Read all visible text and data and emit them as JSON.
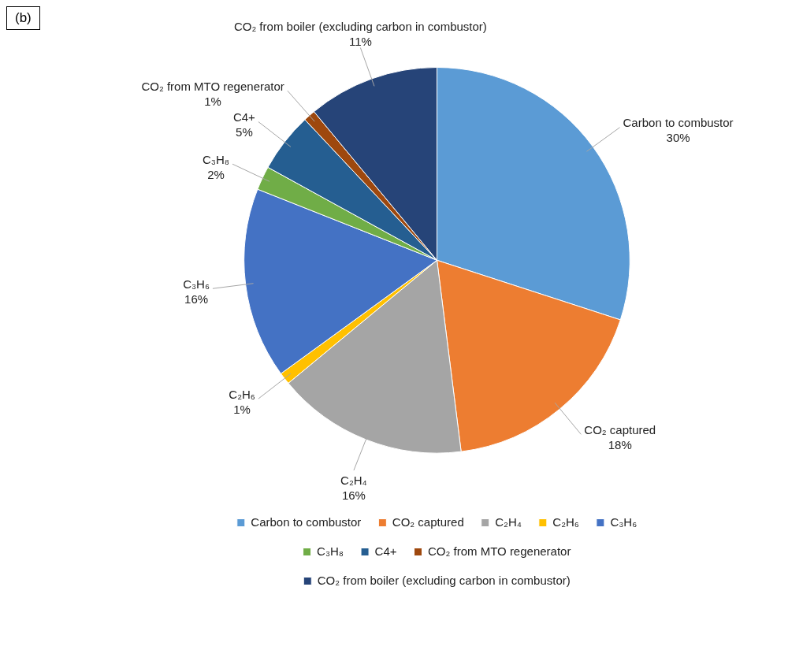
{
  "chart_data": {
    "type": "pie",
    "title": "(b)",
    "categories": [
      "Carbon to combustor",
      "CO₂ captured",
      "C₂H₄",
      "C₂H₆",
      "C₃H₆",
      "C₃H₈",
      "C4+",
      "CO₂ from MTO regenerator",
      "CO₂ from boiler (excluding carbon in combustor)"
    ],
    "values": [
      30,
      18,
      16,
      1,
      16,
      2,
      5,
      1,
      11
    ],
    "value_labels": [
      "30%",
      "18%",
      "16%",
      "1%",
      "16%",
      "2%",
      "5%",
      "1%",
      "11%"
    ],
    "colors": [
      "#5b9bd5",
      "#ed7d31",
      "#a5a5a5",
      "#ffc000",
      "#4472c4",
      "#70ad47",
      "#255e91",
      "#9e480e",
      "#264478"
    ],
    "legend": "bottom"
  }
}
